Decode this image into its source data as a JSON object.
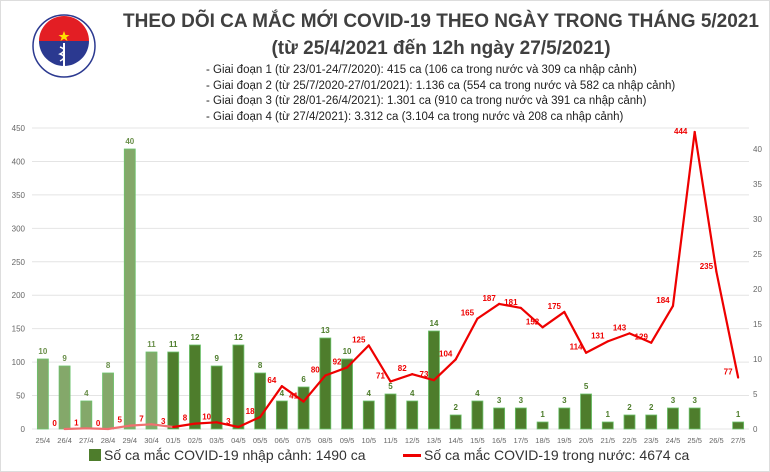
{
  "header": {
    "title": "THEO DÕI CA MẮC MỚI COVID-19 THEO NGÀY TRONG THÁNG 5/2021",
    "subtitle": "(từ 25/4/2021 đến 12h ngày 27/5/2021)",
    "phases": [
      "- Giai đoạn 1 (từ 23/01-24/7/2020): 415 ca (106 ca trong nước và 309 ca nhập cảnh)",
      "- Giai đoạn 2 (từ 25/7/2020-27/01/2021): 1.136 ca (554 ca trong nước và 582 ca nhập cảnh)",
      "- Giai đoạn 3 (từ 28/01-26/4/2021): 1.301 ca (910 ca trong nước và 391 ca nhập cảnh)",
      "- Giai đoạn 4 (từ 27/4/2021): 3.312 ca (3.104 ca trong nước và 208 ca nhập cảnh)"
    ],
    "logo": {
      "text_top": "BỘ Y TẾ",
      "text_bottom": "MINISTRY OF HEALTH"
    }
  },
  "chart_data": {
    "type": "bar+line",
    "categories": [
      "25/4",
      "26/4",
      "27/4",
      "28/4",
      "29/4",
      "30/4",
      "01/5",
      "02/5",
      "03/5",
      "04/5",
      "05/5",
      "06/5",
      "07/5",
      "08/5",
      "09/5",
      "10/5",
      "11/5",
      "12/5",
      "13/5",
      "14/5",
      "15/5",
      "16/5",
      "17/5",
      "18/5",
      "19/5",
      "20/5",
      "21/5",
      "22/5",
      "23/5",
      "24/5",
      "25/5",
      "26/5",
      "27/5"
    ],
    "series": [
      {
        "name": "Số ca mắc COVID-19 nhập cảnh: 1490 ca",
        "type": "bar",
        "axis": "right",
        "color": "#4e7d2c",
        "light_color": "#84a86a",
        "values": [
          10,
          9,
          4,
          8,
          40,
          11,
          11,
          12,
          9,
          12,
          8,
          4,
          6,
          13,
          10,
          4,
          5,
          4,
          14,
          2,
          4,
          3,
          3,
          1,
          3,
          5,
          1,
          2,
          2,
          3,
          3,
          null,
          1
        ]
      },
      {
        "name": "Số ca mắc COVID-19 trong nước: 4674 ca",
        "type": "line",
        "axis": "left",
        "color": "#ee0000",
        "values": [
          null,
          0,
          1,
          0,
          5,
          7,
          3,
          8,
          10,
          3,
          18,
          64,
          41,
          80,
          92,
          125,
          71,
          82,
          73,
          104,
          165,
          187,
          181,
          152,
          175,
          114,
          131,
          143,
          129,
          184,
          444,
          235,
          77
        ]
      }
    ],
    "left_axis": {
      "ylim": [
        0,
        450
      ],
      "ticks": [
        0,
        50,
        100,
        150,
        200,
        250,
        300,
        350,
        400,
        450
      ]
    },
    "right_axis": {
      "ylim": [
        0,
        43
      ],
      "ticks": [
        0,
        5,
        10,
        15,
        20,
        25,
        30,
        35,
        40
      ]
    },
    "grid": true,
    "legend": "bottom"
  }
}
